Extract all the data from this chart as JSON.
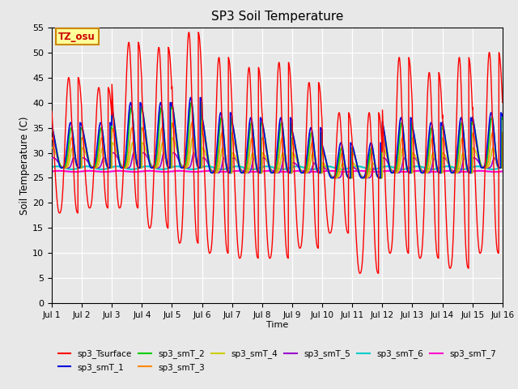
{
  "title": "SP3 Soil Temperature",
  "xlabel": "Time",
  "ylabel": "Soil Temperature (C)",
  "ylim": [
    0,
    55
  ],
  "yticks": [
    0,
    5,
    10,
    15,
    20,
    25,
    30,
    35,
    40,
    45,
    50,
    55
  ],
  "bg_color": "#e8e8e8",
  "plot_bg_color": "#e8e8e8",
  "annotation_text": "TZ_osu",
  "annotation_bg": "#ffff99",
  "annotation_border": "#cc8800",
  "series_colors": {
    "sp3_Tsurface": "#ff0000",
    "sp3_smT_1": "#0000dd",
    "sp3_smT_2": "#00cc00",
    "sp3_smT_3": "#ff8800",
    "sp3_smT_4": "#cccc00",
    "sp3_smT_5": "#9900cc",
    "sp3_smT_6": "#00cccc",
    "sp3_smT_7": "#ff00cc"
  },
  "x_tick_labels": [
    "Jul 1",
    "Jul 2",
    "Jul 3",
    "Jul 4",
    "Jul 5",
    "Jul 6",
    "Jul 7",
    "Jul 8",
    "Jul 9",
    "Jul 10",
    "Jul 11",
    "Jul 12",
    "Jul 13",
    "Jul 14",
    "Jul 15",
    "Jul 16"
  ],
  "n_days": 15,
  "pts_per_day": 144,
  "surface_peaks": [
    45,
    43,
    52,
    51,
    54,
    49,
    47,
    48,
    44,
    38,
    38,
    49,
    46,
    49,
    50,
    50
  ],
  "surface_mins": [
    18,
    19,
    19,
    15,
    12,
    10,
    9,
    9,
    11,
    14,
    6,
    10,
    9,
    7,
    10,
    10
  ],
  "smT1_peaks": [
    36,
    36,
    40,
    40,
    41,
    38,
    37,
    37,
    35,
    32,
    32,
    37,
    36,
    37,
    38,
    38
  ],
  "smT1_mins": [
    27,
    27,
    27,
    27,
    27,
    26,
    26,
    26,
    26,
    25,
    25,
    26,
    26,
    26,
    27,
    27
  ],
  "smT2_peaks": [
    35,
    35,
    39,
    39,
    40,
    37,
    36,
    36,
    34,
    31,
    31,
    36,
    35,
    36,
    37,
    37
  ],
  "smT2_mins": [
    27,
    27,
    27,
    27,
    27,
    26,
    26,
    26,
    26,
    25,
    25,
    26,
    26,
    26,
    27,
    27
  ],
  "smT3_peaks": [
    33,
    33,
    35,
    35,
    36,
    34,
    33,
    33,
    32,
    30,
    30,
    33,
    33,
    33,
    34,
    34
  ],
  "smT3_mins": [
    27,
    27,
    27,
    27,
    27,
    26,
    26,
    26,
    26,
    25,
    25,
    26,
    26,
    26,
    27,
    27
  ],
  "smT4_peaks": [
    31,
    31,
    32,
    32,
    33,
    31,
    30,
    30,
    30,
    28,
    28,
    31,
    30,
    30,
    31,
    31
  ],
  "smT4_mins": [
    27,
    27,
    27,
    27,
    27,
    26,
    26,
    26,
    26,
    25,
    25,
    26,
    26,
    26,
    27,
    27
  ],
  "smT5_peaks": [
    29,
    29,
    30,
    30,
    30,
    29,
    29,
    29,
    28,
    27,
    27,
    29,
    29,
    29,
    29,
    29
  ],
  "smT5_mins": [
    27,
    27,
    27,
    27,
    27,
    26,
    26,
    26,
    26,
    25,
    25,
    26,
    26,
    26,
    27,
    27
  ],
  "smT6_base": 27.0,
  "smT7_base": 26.3
}
